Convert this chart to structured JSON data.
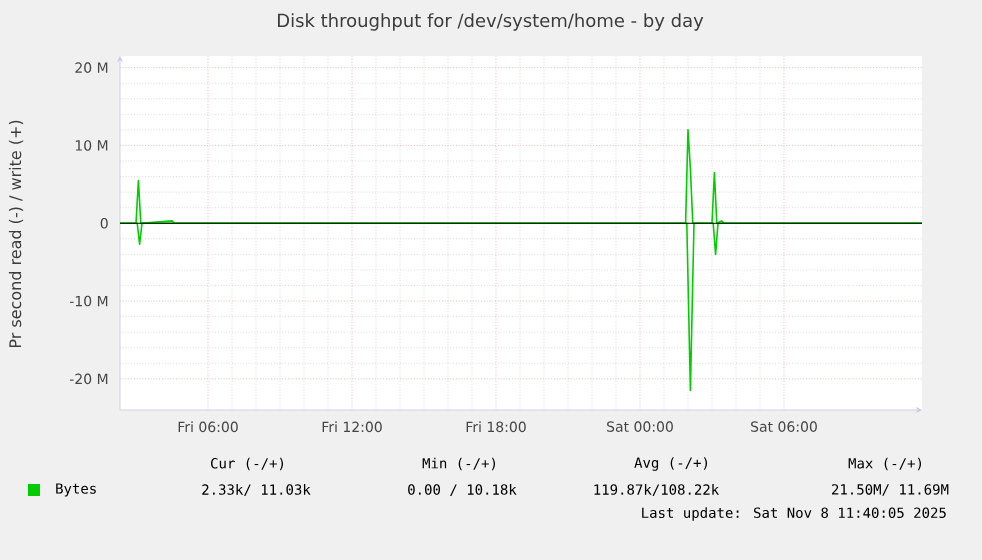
{
  "chart_data": {
    "type": "line",
    "title": "Disk throughput for /dev/system/home - by day",
    "ylabel": "Pr second read (-) / write (+)",
    "xlim": [
      "2025-11-07T02:20",
      "2025-11-08T11:45"
    ],
    "ylim": [
      -24,
      21.5
    ],
    "xticks": [
      {
        "value": "2025-11-07T06:00",
        "label": "Fri 06:00"
      },
      {
        "value": "2025-11-07T12:00",
        "label": "Fri 12:00"
      },
      {
        "value": "2025-11-07T18:00",
        "label": "Fri 18:00"
      },
      {
        "value": "2025-11-08T00:00",
        "label": "Sat 00:00"
      },
      {
        "value": "2025-11-08T06:00",
        "label": "Sat 06:00"
      }
    ],
    "yticks": [
      {
        "value": -20,
        "label": "-20 M"
      },
      {
        "value": -10,
        "label": "-10 M"
      },
      0,
      {
        "value": 10,
        "label": "10 M"
      },
      {
        "value": 20,
        "label": "20 M"
      }
    ],
    "grid": true,
    "legend": "bottom left",
    "ref_lines": [
      {
        "axis": "y",
        "value": 0,
        "color": "#000000"
      }
    ],
    "series": [
      {
        "name": "Bytes",
        "color": "#00cc00",
        "x": [
          "2025-11-07T02:20",
          "2025-11-07T03:00",
          "2025-11-07T03:06",
          "2025-11-07T03:12",
          "2025-11-07T04:30",
          "2025-11-07T04:36",
          "2025-11-08T01:54",
          "2025-11-08T02:00",
          "2025-11-08T02:06",
          "2025-11-08T02:12",
          "2025-11-08T03:00",
          "2025-11-08T03:06",
          "2025-11-08T03:12",
          "2025-11-08T03:24",
          "2025-11-08T03:30",
          "2025-11-08T11:45"
        ],
        "values": [
          0,
          0,
          5.5,
          0,
          0.3,
          0,
          0,
          12,
          7,
          0,
          0,
          6.5,
          0,
          0.3,
          0,
          0
        ]
      },
      {
        "color": "#00cc00",
        "x": [
          "2025-11-07T02:20",
          "2025-11-07T03:03",
          "2025-11-07T03:09",
          "2025-11-07T03:15",
          "2025-11-08T01:57",
          "2025-11-08T02:06",
          "2025-11-08T02:15",
          "2025-11-08T03:03",
          "2025-11-08T03:09",
          "2025-11-08T03:15",
          "2025-11-08T11:45"
        ],
        "values": [
          0,
          0,
          -2.7,
          0,
          0,
          -21.5,
          0,
          0,
          -4,
          0,
          0
        ]
      }
    ],
    "annotations": [
      "Cur (-/+)",
      "Min (-/+)",
      "Avg (-/+)",
      "Max (-/+)",
      "2.33k/ 11.03k",
      "0.00 / 10.18k",
      "119.87k/108.22k",
      "21.50M/ 11.69M",
      "Last update: Sat Nov  8 11:40:05 2025"
    ]
  }
}
